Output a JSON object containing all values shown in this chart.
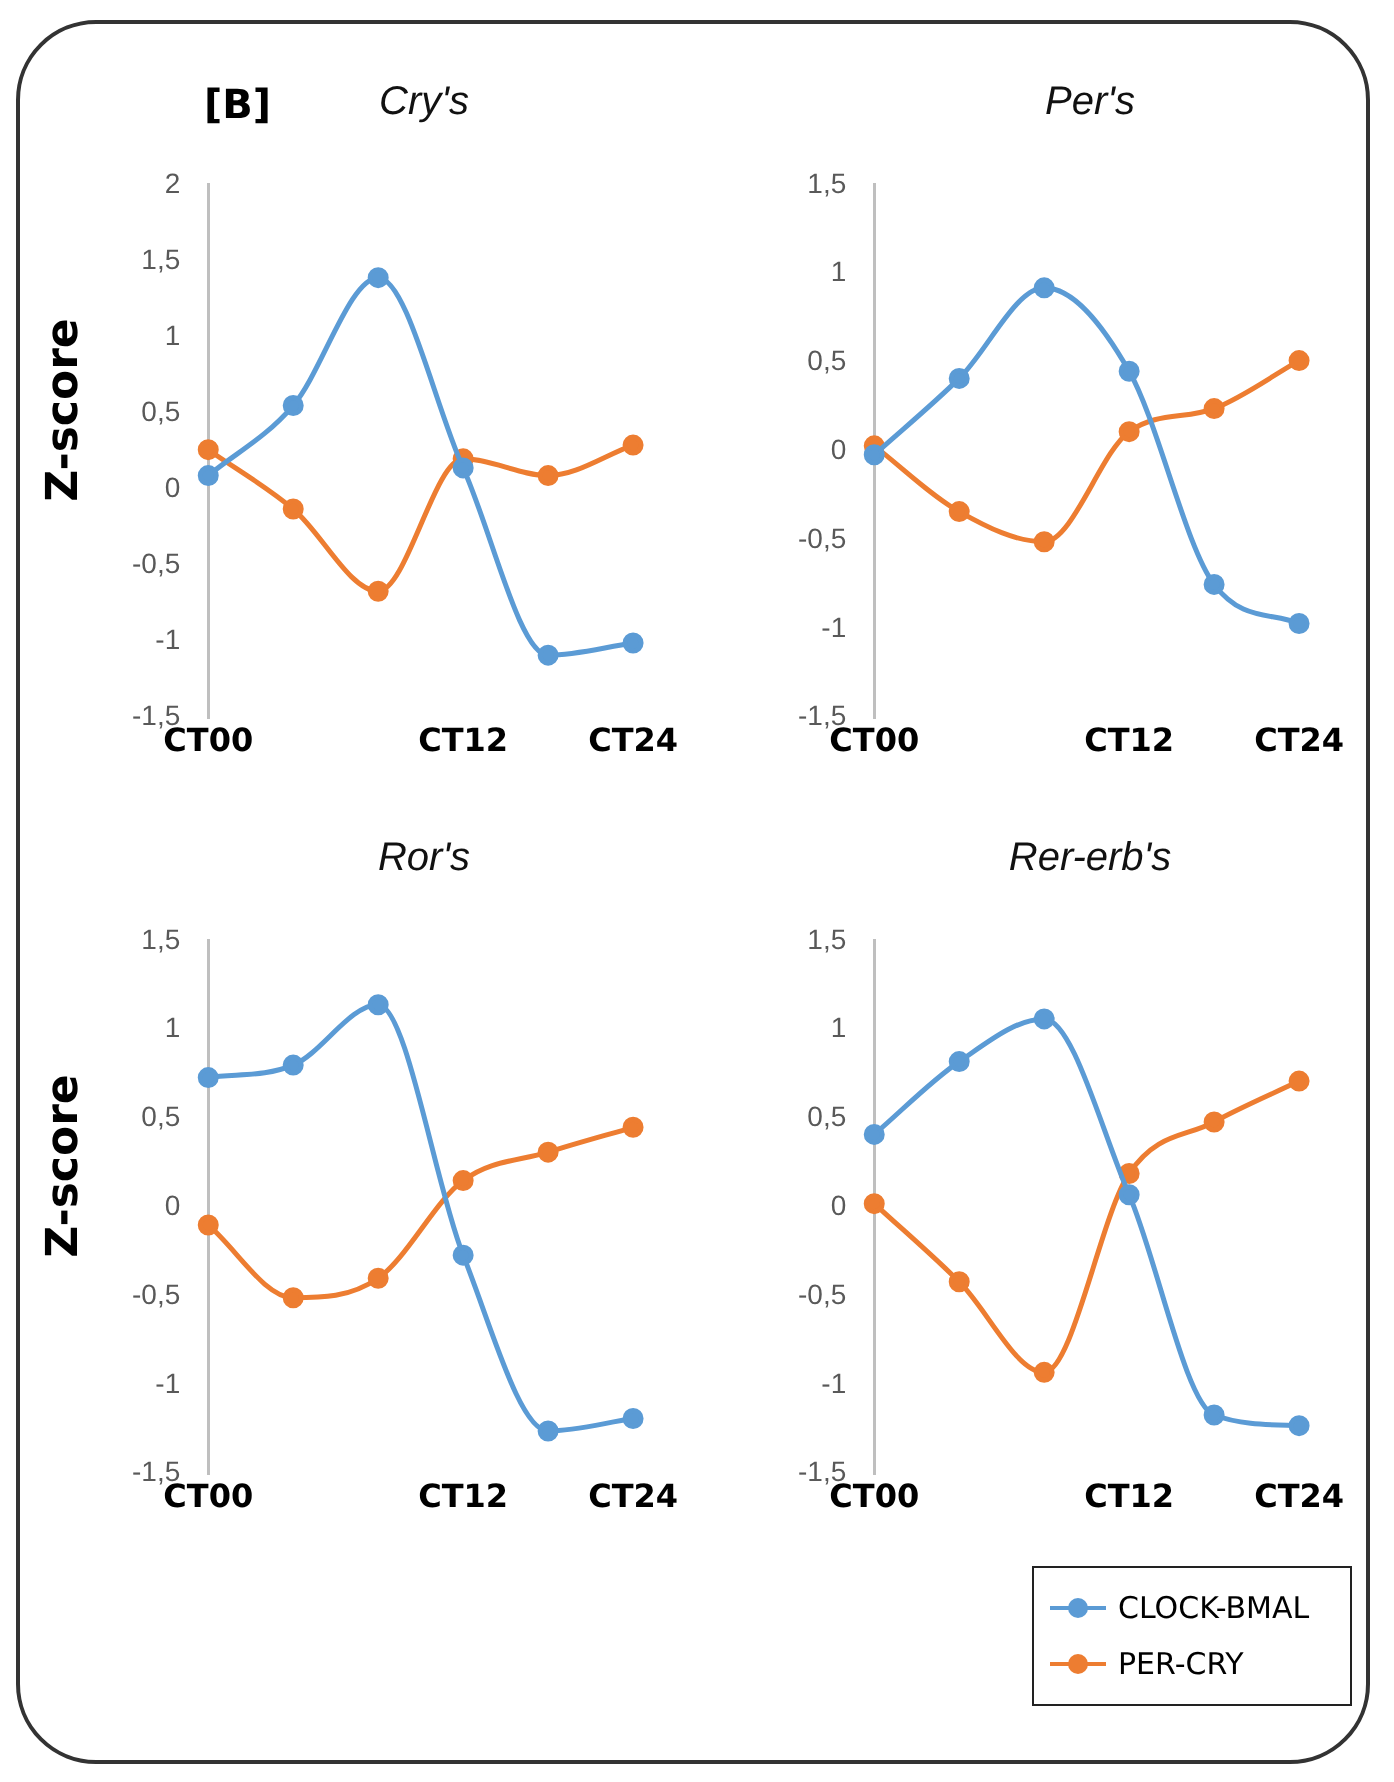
{
  "chart_data": [
    {
      "type": "line",
      "title": "Cry's",
      "ylabel": "Z-score",
      "annotations": [
        "[B]"
      ],
      "categories": [
        "CT00",
        null,
        null,
        "CT12",
        null,
        "CT24"
      ],
      "ylim": [
        -1.5,
        2
      ],
      "yticks": [
        {
          "value": -1.5,
          "label": "-1,5"
        },
        {
          "value": -1,
          "label": "-1"
        },
        {
          "value": -0.5,
          "label": "-0,5"
        },
        {
          "value": 0,
          "label": "0"
        },
        {
          "value": 0.5,
          "label": "0,5"
        },
        {
          "value": 1,
          "label": "1"
        },
        {
          "value": 1.5,
          "label": "1,5"
        },
        {
          "value": 2,
          "label": "2"
        }
      ],
      "grid": false,
      "legend": false,
      "marker": "circle",
      "line_style": "solid",
      "series": [
        {
          "color": "#5b9bd5",
          "values": [
            0.09,
            0.55,
            1.39,
            0.14,
            -1.09,
            -1.01
          ]
        },
        {
          "color": "#ed7d31",
          "values": [
            0.26,
            -0.13,
            -0.67,
            0.2,
            0.09,
            0.29
          ]
        }
      ]
    },
    {
      "type": "line",
      "title": "Per's",
      "categories": [
        "CT00",
        null,
        null,
        "CT12",
        null,
        "CT24"
      ],
      "ylim": [
        -1.5,
        1.5
      ],
      "yticks": [
        {
          "value": -1.5,
          "label": "-1,5"
        },
        {
          "value": -1,
          "label": "-1"
        },
        {
          "value": -0.5,
          "label": "-0,5"
        },
        {
          "value": 0,
          "label": "0"
        },
        {
          "value": 0.5,
          "label": "0,5"
        },
        {
          "value": 1,
          "label": "1"
        },
        {
          "value": 1.5,
          "label": "1,5"
        }
      ],
      "grid": false,
      "legend": false,
      "marker": "circle",
      "line_style": "solid",
      "series": [
        {
          "color": "#5b9bd5",
          "values": [
            -0.02,
            0.41,
            0.92,
            0.45,
            -0.75,
            -0.97
          ]
        },
        {
          "color": "#ed7d31",
          "values": [
            0.03,
            -0.34,
            -0.51,
            0.11,
            0.24,
            0.51
          ]
        }
      ]
    },
    {
      "type": "line",
      "title": "Ror's",
      "ylabel": "Z-score",
      "categories": [
        "CT00",
        null,
        null,
        "CT12",
        null,
        "CT24"
      ],
      "ylim": [
        -1.5,
        1.5
      ],
      "yticks": [
        {
          "value": -1.5,
          "label": "-1,5"
        },
        {
          "value": -1,
          "label": "-1"
        },
        {
          "value": -0.5,
          "label": "-0,5"
        },
        {
          "value": 0,
          "label": "0"
        },
        {
          "value": 0.5,
          "label": "0,5"
        },
        {
          "value": 1,
          "label": "1"
        },
        {
          "value": 1.5,
          "label": "1,5"
        }
      ],
      "grid": false,
      "legend": false,
      "marker": "circle",
      "line_style": "solid",
      "series": [
        {
          "color": "#5b9bd5",
          "values": [
            0.73,
            0.8,
            1.14,
            -0.27,
            -1.26,
            -1.19
          ]
        },
        {
          "color": "#ed7d31",
          "values": [
            -0.1,
            -0.51,
            -0.4,
            0.15,
            0.31,
            0.45
          ]
        }
      ]
    },
    {
      "type": "line",
      "title": "Rer-erb's",
      "categories": [
        "CT00",
        null,
        null,
        "CT12",
        null,
        "CT24"
      ],
      "ylim": [
        -1.5,
        1.5
      ],
      "yticks": [
        {
          "value": -1.5,
          "label": "-1,5"
        },
        {
          "value": -1,
          "label": "-1"
        },
        {
          "value": -0.5,
          "label": "-0,5"
        },
        {
          "value": 0,
          "label": "0"
        },
        {
          "value": 0.5,
          "label": "0,5"
        },
        {
          "value": 1,
          "label": "1"
        },
        {
          "value": 1.5,
          "label": "1,5"
        }
      ],
      "grid": false,
      "legend": "bottom right",
      "marker": "circle",
      "line_style": "solid",
      "series": [
        {
          "name": "CLOCK-BMAL",
          "color": "#5b9bd5",
          "values": [
            0.41,
            0.82,
            1.06,
            0.07,
            -1.17,
            -1.23
          ]
        },
        {
          "name": "PER-CRY",
          "color": "#ed7d31",
          "values": [
            0.02,
            -0.42,
            -0.93,
            0.19,
            0.48,
            0.71
          ]
        }
      ]
    }
  ]
}
